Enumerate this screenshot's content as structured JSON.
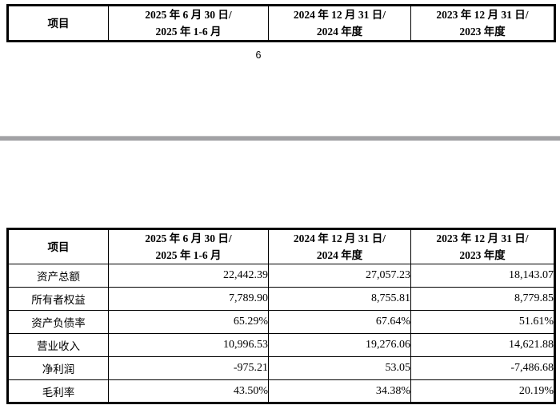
{
  "document": {
    "page_number": "6",
    "divider_color": "#a2a2a5",
    "table_border_color": "#000000"
  },
  "continued_table": {
    "headers": [
      {
        "line1": "项目",
        "line2": ""
      },
      {
        "line1": "2025 年 6 月 30 日/",
        "line2": "2025 年 1-6 月"
      },
      {
        "line1": "2024 年 12 月 31 日/",
        "line2": "2024 年度"
      },
      {
        "line1": "2023 年 12 月 31 日/",
        "line2": "2023 年度"
      }
    ]
  },
  "financial_table": {
    "headers": [
      {
        "line1": "项目",
        "line2": ""
      },
      {
        "line1": "2025 年 6 月 30 日/",
        "line2": "2025 年 1-6 月"
      },
      {
        "line1": "2024 年 12 月 31 日/",
        "line2": "2024 年度"
      },
      {
        "line1": "2023 年 12 月 31 日/",
        "line2": "2023 年度"
      }
    ],
    "rows": [
      {
        "label": "资产总额",
        "values": [
          "22,442.39",
          "27,057.23",
          "18,143.07"
        ]
      },
      {
        "label": "所有者权益",
        "values": [
          "7,789.90",
          "8,755.81",
          "8,779.85"
        ]
      },
      {
        "label": "资产负债率",
        "values": [
          "65.29%",
          "67.64%",
          "51.61%"
        ]
      },
      {
        "label": "营业收入",
        "values": [
          "10,996.53",
          "19,276.06",
          "14,621.88"
        ]
      },
      {
        "label": "净利润",
        "values": [
          "-975.21",
          "53.05",
          "-7,486.68"
        ]
      },
      {
        "label": "毛利率",
        "values": [
          "43.50%",
          "34.38%",
          "20.19%"
        ]
      }
    ]
  }
}
